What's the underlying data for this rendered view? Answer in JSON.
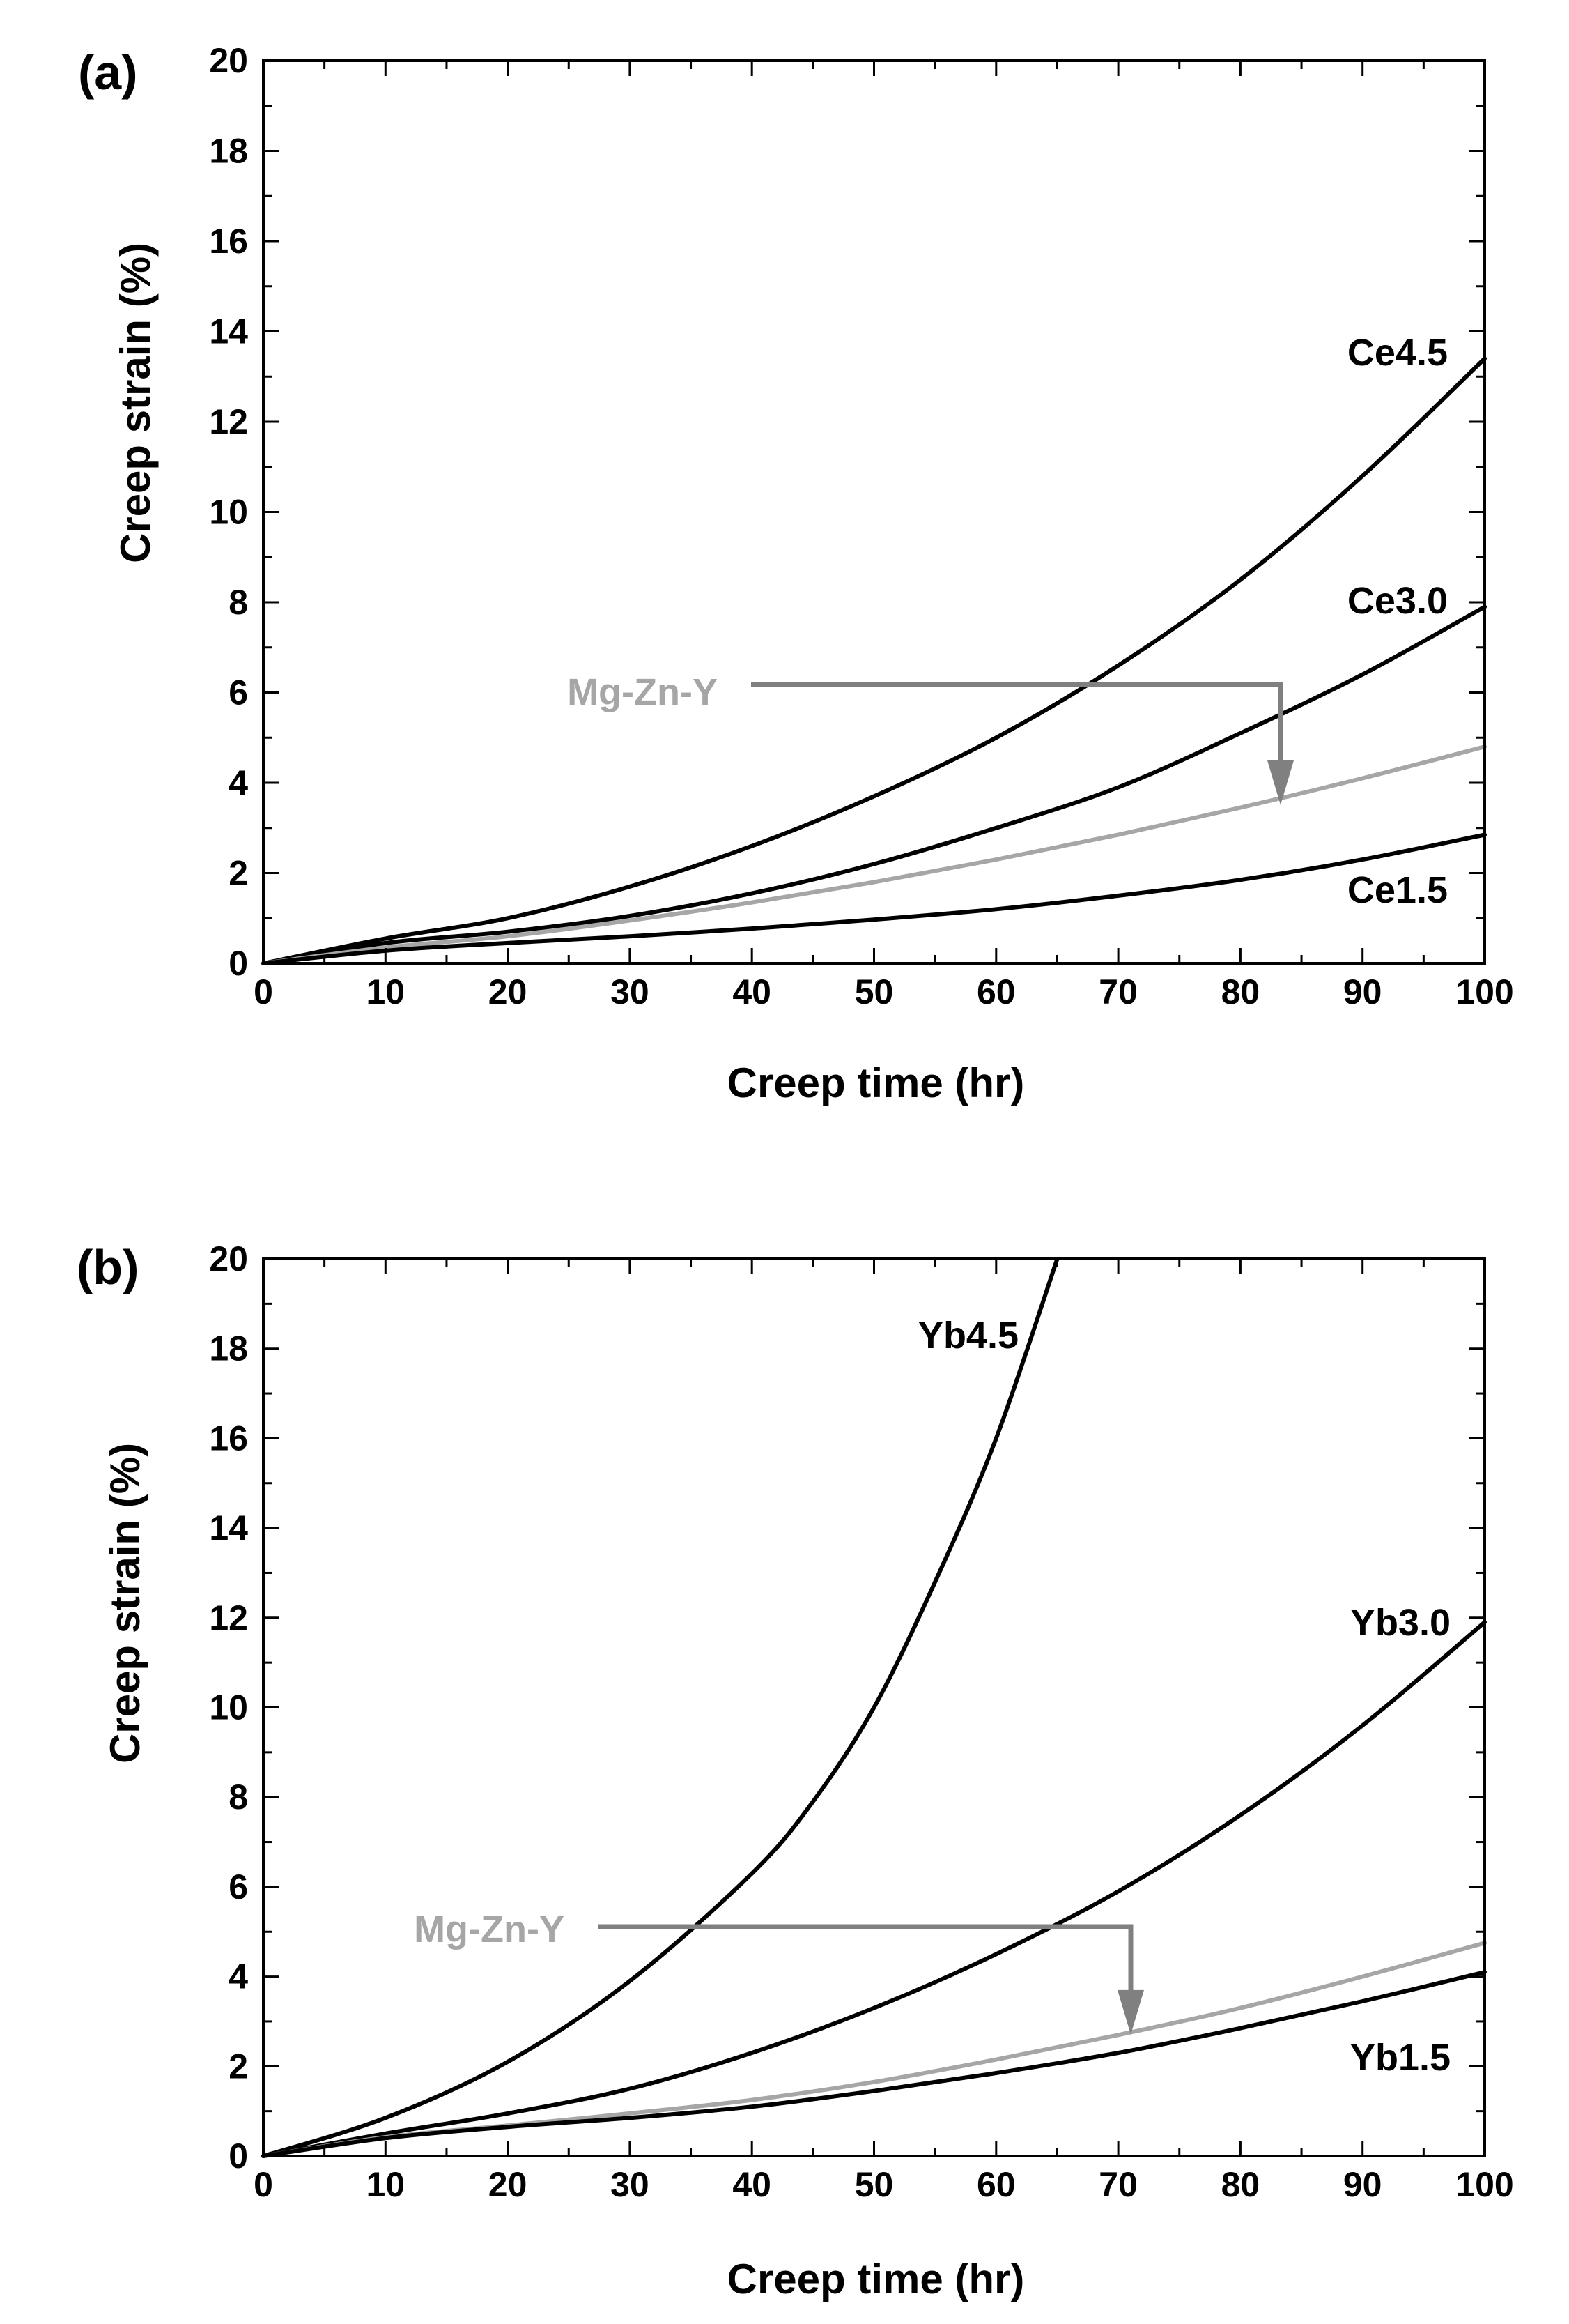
{
  "chart_data": [
    {
      "panel_label": "(a)",
      "type": "line",
      "xlabel": "Creep time (hr)",
      "ylabel": "Creep strain (%)",
      "xlim": [
        0,
        100
      ],
      "ylim": [
        0,
        20
      ],
      "xticks": [
        0,
        10,
        20,
        30,
        40,
        50,
        60,
        70,
        80,
        90,
        100
      ],
      "yticks": [
        0,
        2,
        4,
        6,
        8,
        10,
        12,
        14,
        16,
        18,
        20
      ],
      "grid": false,
      "series": [
        {
          "name": "Ce4.5",
          "color": "#000000",
          "label_color": "#000000",
          "x": [
            0,
            10,
            20,
            30,
            40,
            50,
            60,
            70,
            80,
            90,
            100
          ],
          "y": [
            0,
            0.55,
            1.0,
            1.7,
            2.6,
            3.7,
            5.0,
            6.6,
            8.5,
            10.8,
            13.4
          ]
        },
        {
          "name": "Ce3.0",
          "color": "#000000",
          "label_color": "#000000",
          "x": [
            0,
            10,
            20,
            30,
            40,
            50,
            60,
            70,
            80,
            90,
            100
          ],
          "y": [
            0,
            0.45,
            0.7,
            1.05,
            1.55,
            2.2,
            3.0,
            3.9,
            5.1,
            6.4,
            7.9
          ]
        },
        {
          "name": "Mg-Zn-Y",
          "color": "#a6a6a6",
          "label_color": "#a6a6a6",
          "x": [
            0,
            10,
            20,
            30,
            40,
            50,
            60,
            70,
            80,
            90,
            100
          ],
          "y": [
            0,
            0.35,
            0.6,
            0.95,
            1.35,
            1.8,
            2.3,
            2.85,
            3.45,
            4.1,
            4.8
          ]
        },
        {
          "name": "Ce1.5",
          "color": "#000000",
          "label_color": "#000000",
          "x": [
            0,
            10,
            20,
            30,
            40,
            50,
            60,
            70,
            80,
            90,
            100
          ],
          "y": [
            0,
            0.28,
            0.45,
            0.6,
            0.77,
            0.97,
            1.2,
            1.5,
            1.85,
            2.3,
            2.85
          ]
        }
      ],
      "annotations": [
        {
          "text": "Mg-Zn-Y",
          "color": "#a6a6a6",
          "arrow_to_x": 83.5,
          "arrow_to_y": 3.6
        }
      ]
    },
    {
      "panel_label": "(b)",
      "type": "line",
      "xlabel": "Creep time (hr)",
      "ylabel": "Creep strain (%)",
      "xlim": [
        0,
        100
      ],
      "ylim": [
        0,
        20
      ],
      "xticks": [
        0,
        10,
        20,
        30,
        40,
        50,
        60,
        70,
        80,
        90,
        100
      ],
      "yticks": [
        0,
        2,
        4,
        6,
        8,
        10,
        12,
        14,
        16,
        18,
        20
      ],
      "grid": false,
      "series": [
        {
          "name": "Yb4.5",
          "color": "#000000",
          "label_color": "#000000",
          "x": [
            0,
            10,
            20,
            30,
            40,
            45,
            50,
            55,
            60,
            65
          ],
          "y": [
            0,
            0.85,
            2.1,
            3.9,
            6.3,
            7.9,
            10.0,
            12.8,
            16.0,
            20.0
          ]
        },
        {
          "name": "Yb3.0",
          "color": "#000000",
          "label_color": "#000000",
          "x": [
            0,
            10,
            20,
            30,
            40,
            50,
            60,
            70,
            80,
            90,
            100
          ],
          "y": [
            0,
            0.5,
            0.95,
            1.5,
            2.3,
            3.3,
            4.5,
            5.9,
            7.6,
            9.6,
            11.9
          ]
        },
        {
          "name": "Mg-Zn-Y",
          "color": "#a6a6a6",
          "label_color": "#a6a6a6",
          "x": [
            0,
            10,
            20,
            30,
            40,
            50,
            60,
            70,
            80,
            90,
            100
          ],
          "y": [
            0,
            0.42,
            0.68,
            0.95,
            1.25,
            1.65,
            2.15,
            2.7,
            3.3,
            4.0,
            4.75
          ]
        },
        {
          "name": "Yb1.5",
          "color": "#000000",
          "label_color": "#000000",
          "x": [
            0,
            10,
            20,
            30,
            40,
            50,
            60,
            70,
            80,
            90,
            100
          ],
          "y": [
            0,
            0.4,
            0.65,
            0.85,
            1.1,
            1.45,
            1.85,
            2.3,
            2.85,
            3.45,
            4.1
          ]
        }
      ],
      "annotations": [
        {
          "text": "Mg-Zn-Y",
          "color": "#a6a6a6",
          "arrow_to_x": 71.0,
          "arrow_to_y": 2.8
        }
      ]
    }
  ]
}
